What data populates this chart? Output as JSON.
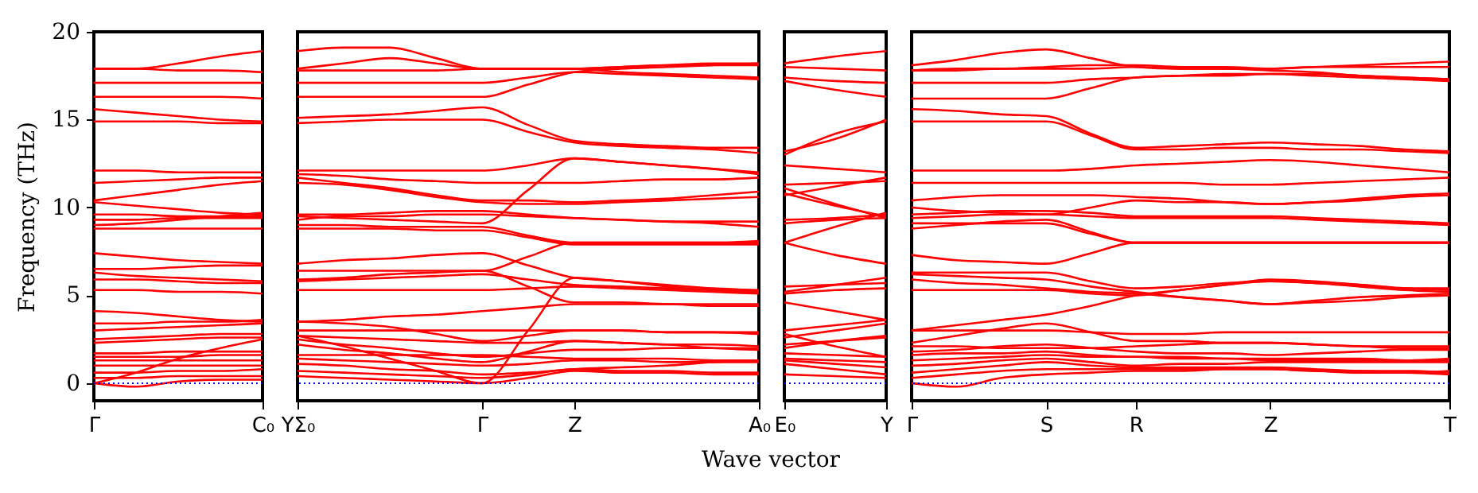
{
  "chart_data": [
    {
      "type": "line",
      "ylabel": "Frequency (THz)",
      "categories": [
        "Γ",
        null,
        null,
        null,
        "C₀"
      ],
      "ylim": [
        -1,
        20
      ],
      "yticks": [
        0,
        5,
        10,
        15,
        20
      ],
      "line_style": "solid",
      "ref_lines": [
        {
          "axis": "y",
          "value": 0,
          "label": null,
          "color": "#0000ff",
          "line_style": "dotted"
        }
      ],
      "series": [
        {
          "color": "#ff0000",
          "values": [
            17.9,
            17.9,
            18.2,
            18.6,
            18.9
          ]
        },
        {
          "color": "#ff0000",
          "values": [
            17.9,
            17.9,
            17.8,
            17.8,
            17.7
          ]
        },
        {
          "color": "#ff0000",
          "values": [
            17.1,
            17.1,
            17.1,
            17.1,
            17.1
          ]
        },
        {
          "color": "#ff0000",
          "values": [
            16.3,
            16.3,
            16.3,
            16.3,
            16.2
          ]
        },
        {
          "color": "#ff0000",
          "values": [
            15.6,
            15.4,
            15.2,
            15.0,
            14.9
          ]
        },
        {
          "color": "#ff0000",
          "values": [
            14.9,
            14.9,
            14.9,
            14.8,
            14.8
          ]
        },
        {
          "color": "#ff0000",
          "values": [
            12.1,
            12.1,
            12.0,
            12.0,
            12.0
          ]
        },
        {
          "color": "#ff0000",
          "values": [
            11.4,
            11.5,
            11.6,
            11.7,
            11.7
          ]
        },
        {
          "color": "#ff0000",
          "values": [
            10.4,
            10.7,
            11.0,
            11.3,
            11.5
          ]
        },
        {
          "color": "#ff0000",
          "values": [
            10.3,
            10.1,
            9.9,
            9.7,
            9.6
          ]
        },
        {
          "color": "#ff0000",
          "values": [
            9.6,
            9.6,
            9.5,
            9.5,
            9.5
          ]
        },
        {
          "color": "#ff0000",
          "values": [
            9.3,
            9.3,
            9.4,
            9.4,
            9.4
          ]
        },
        {
          "color": "#ff0000",
          "values": [
            9.0,
            9.1,
            9.3,
            9.5,
            9.7
          ]
        },
        {
          "color": "#ff0000",
          "values": [
            8.8,
            8.8,
            8.8,
            8.8,
            8.8
          ]
        },
        {
          "color": "#ff0000",
          "values": [
            7.4,
            7.2,
            7.0,
            6.9,
            6.8
          ]
        },
        {
          "color": "#ff0000",
          "values": [
            6.5,
            6.5,
            6.6,
            6.7,
            6.7
          ]
        },
        {
          "color": "#ff0000",
          "values": [
            6.3,
            6.1,
            6.0,
            5.9,
            5.8
          ]
        },
        {
          "color": "#ff0000",
          "values": [
            5.9,
            5.9,
            5.8,
            5.7,
            5.7
          ]
        },
        {
          "color": "#ff0000",
          "values": [
            5.3,
            5.3,
            5.2,
            5.2,
            5.1
          ]
        },
        {
          "color": "#ff0000",
          "values": [
            4.1,
            4.0,
            3.8,
            3.6,
            3.5
          ]
        },
        {
          "color": "#ff0000",
          "values": [
            3.4,
            3.4,
            3.5,
            3.5,
            3.6
          ]
        },
        {
          "color": "#ff0000",
          "values": [
            3.0,
            3.1,
            3.2,
            3.3,
            3.4
          ]
        },
        {
          "color": "#ff0000",
          "values": [
            2.5,
            2.6,
            2.7,
            2.8,
            2.8
          ]
        },
        {
          "color": "#ff0000",
          "values": [
            2.3,
            2.4,
            2.5,
            2.6,
            2.6
          ]
        },
        {
          "color": "#ff0000",
          "values": [
            1.7,
            1.7,
            1.8,
            1.8,
            1.8
          ]
        },
        {
          "color": "#ff0000",
          "values": [
            1.5,
            1.5,
            1.5,
            1.6,
            1.6
          ]
        },
        {
          "color": "#ff0000",
          "values": [
            1.3,
            1.3,
            1.3,
            1.3,
            1.3
          ]
        },
        {
          "color": "#ff0000",
          "values": [
            1.0,
            1.0,
            1.0,
            1.0,
            1.0
          ]
        },
        {
          "color": "#ff0000",
          "values": [
            0.6,
            0.6,
            0.7,
            0.7,
            0.8
          ]
        },
        {
          "color": "#ff0000",
          "values": [
            0.3,
            0.3,
            0.4,
            0.4,
            0.4
          ]
        },
        {
          "color": "#ff0000",
          "values": [
            0.0,
            -0.2,
            0.1,
            0.2,
            0.2
          ]
        },
        {
          "color": "#ff0000",
          "values": [
            0.0,
            0.6,
            1.4,
            2.0,
            2.5
          ]
        }
      ]
    },
    {
      "type": "line",
      "categories": [
        "YΣ₀",
        null,
        null,
        null,
        "Γ",
        null,
        "Z",
        null,
        null,
        null,
        "A₀"
      ],
      "ylim": [
        -1,
        20
      ],
      "yticks": [
        0,
        5,
        10,
        15,
        20
      ],
      "tick_labels": "x",
      "line_style": "solid",
      "ref_lines": [
        {
          "axis": "y",
          "value": 0,
          "label": null,
          "color": "#0000ff",
          "line_style": "dotted"
        }
      ],
      "series": [
        {
          "color": "#ff0000",
          "values": [
            18.9,
            19.1,
            19.1,
            18.5,
            17.9,
            17.9,
            17.9,
            18.0,
            18.1,
            18.2,
            18.2
          ]
        },
        {
          "color": "#ff0000",
          "values": [
            17.9,
            18.2,
            18.5,
            18.2,
            17.9,
            17.9,
            17.9,
            18.0,
            18.1,
            18.1,
            18.1
          ]
        },
        {
          "color": "#ff0000",
          "values": [
            17.8,
            17.8,
            17.8,
            17.8,
            17.9,
            17.9,
            17.9,
            17.7,
            17.6,
            17.5,
            17.4
          ]
        },
        {
          "color": "#ff0000",
          "values": [
            17.1,
            17.1,
            17.1,
            17.1,
            17.1,
            17.4,
            17.7,
            17.6,
            17.5,
            17.4,
            17.3
          ]
        },
        {
          "color": "#ff0000",
          "values": [
            16.3,
            16.3,
            16.3,
            16.3,
            16.3,
            17.0,
            17.7,
            17.9,
            18.0,
            18.1,
            18.2
          ]
        },
        {
          "color": "#ff0000",
          "values": [
            15.1,
            15.2,
            15.3,
            15.5,
            15.7,
            14.7,
            13.8,
            13.6,
            13.5,
            13.4,
            13.4
          ]
        },
        {
          "color": "#ff0000",
          "values": [
            14.8,
            14.9,
            15.0,
            15.0,
            15.0,
            14.3,
            13.7,
            13.5,
            13.4,
            13.3,
            13.1
          ]
        },
        {
          "color": "#ff0000",
          "values": [
            12.1,
            12.1,
            12.1,
            12.1,
            12.1,
            12.4,
            12.8,
            12.6,
            12.4,
            12.2,
            12.0
          ]
        },
        {
          "color": "#ff0000",
          "values": [
            11.9,
            11.8,
            11.6,
            11.5,
            11.4,
            11.4,
            11.4,
            11.5,
            11.6,
            11.6,
            11.7
          ]
        },
        {
          "color": "#ff0000",
          "values": [
            11.7,
            11.4,
            11.1,
            10.7,
            10.4,
            10.4,
            10.3,
            10.4,
            10.5,
            10.7,
            10.9
          ]
        },
        {
          "color": "#ff0000",
          "values": [
            11.4,
            11.3,
            11.0,
            10.6,
            10.3,
            10.2,
            10.2,
            10.3,
            10.4,
            10.5,
            10.6
          ]
        },
        {
          "color": "#ff0000",
          "values": [
            9.5,
            9.4,
            9.3,
            9.2,
            9.1,
            11.0,
            12.8,
            12.6,
            12.4,
            12.2,
            11.9
          ]
        },
        {
          "color": "#ff0000",
          "values": [
            9.6,
            9.6,
            9.7,
            9.8,
            9.8,
            9.6,
            9.4,
            9.3,
            9.2,
            9.2,
            9.2
          ]
        },
        {
          "color": "#ff0000",
          "values": [
            9.3,
            9.5,
            9.5,
            9.6,
            9.6,
            9.5,
            9.4,
            9.3,
            9.2,
            9.1,
            8.9
          ]
        },
        {
          "color": "#ff0000",
          "values": [
            9.0,
            9.0,
            8.9,
            8.9,
            8.9,
            8.4,
            8.0,
            8.0,
            8.0,
            8.0,
            8.0
          ]
        },
        {
          "color": "#ff0000",
          "values": [
            8.8,
            8.8,
            8.8,
            8.7,
            8.7,
            8.3,
            7.9,
            7.9,
            7.9,
            7.9,
            7.9
          ]
        },
        {
          "color": "#ff0000",
          "values": [
            6.8,
            7.0,
            7.1,
            7.3,
            7.4,
            6.7,
            6.0,
            5.8,
            5.5,
            5.3,
            5.2
          ]
        },
        {
          "color": "#ff0000",
          "values": [
            6.4,
            6.4,
            6.4,
            6.4,
            6.4,
            7.2,
            8.0,
            8.0,
            8.0,
            8.0,
            8.1
          ]
        },
        {
          "color": "#ff0000",
          "values": [
            5.9,
            6.0,
            6.2,
            6.3,
            6.4,
            5.5,
            4.6,
            4.6,
            4.5,
            4.5,
            4.5
          ]
        },
        {
          "color": "#ff0000",
          "values": [
            5.8,
            5.9,
            6.0,
            6.1,
            6.2,
            5.9,
            5.6,
            5.5,
            5.4,
            5.3,
            5.2
          ]
        },
        {
          "color": "#ff0000",
          "values": [
            5.3,
            5.3,
            5.3,
            5.3,
            5.3,
            5.4,
            5.5,
            5.4,
            5.3,
            5.2,
            5.1
          ]
        },
        {
          "color": "#ff0000",
          "values": [
            3.5,
            3.6,
            3.8,
            3.9,
            4.1,
            4.3,
            4.5,
            4.5,
            4.5,
            4.4,
            4.4
          ]
        },
        {
          "color": "#ff0000",
          "values": [
            2.7,
            2.1,
            1.4,
            0.7,
            0.0,
            3.0,
            6.0,
            5.8,
            5.6,
            5.4,
            5.3
          ]
        },
        {
          "color": "#ff0000",
          "values": [
            3.5,
            3.4,
            3.2,
            2.8,
            2.4,
            2.7,
            3.0,
            3.0,
            2.9,
            2.9,
            2.8
          ]
        },
        {
          "color": "#ff0000",
          "values": [
            3.0,
            3.0,
            3.0,
            3.0,
            3.0,
            3.0,
            3.0,
            3.0,
            2.9,
            2.9,
            2.9
          ]
        },
        {
          "color": "#ff0000",
          "values": [
            2.7,
            2.6,
            2.5,
            2.4,
            2.3,
            2.3,
            2.4,
            2.3,
            2.2,
            2.2,
            2.1
          ]
        },
        {
          "color": "#ff0000",
          "values": [
            2.5,
            2.2,
            2.0,
            1.7,
            1.5,
            1.7,
            1.9,
            1.9,
            2.0,
            2.0,
            2.0
          ]
        },
        {
          "color": "#ff0000",
          "values": [
            2.2,
            1.9,
            1.7,
            1.4,
            1.2,
            1.8,
            2.4,
            2.3,
            2.2,
            2.0,
            1.9
          ]
        },
        {
          "color": "#ff0000",
          "values": [
            1.6,
            1.6,
            1.6,
            1.6,
            1.6,
            1.5,
            1.4,
            1.4,
            1.4,
            1.3,
            1.3
          ]
        },
        {
          "color": "#ff0000",
          "values": [
            1.4,
            1.3,
            1.2,
            1.1,
            1.0,
            1.1,
            1.3,
            1.3,
            1.2,
            1.2,
            1.2
          ]
        },
        {
          "color": "#ff0000",
          "values": [
            1.1,
            1.0,
            0.8,
            0.7,
            0.5,
            0.6,
            0.8,
            0.9,
            1.0,
            1.2,
            1.3
          ]
        },
        {
          "color": "#ff0000",
          "values": [
            0.7,
            0.6,
            0.5,
            0.4,
            0.3,
            0.5,
            0.8,
            0.7,
            0.7,
            0.6,
            0.6
          ]
        },
        {
          "color": "#ff0000",
          "values": [
            0.4,
            0.3,
            0.2,
            0.1,
            0.0,
            0.3,
            0.7,
            0.6,
            0.6,
            0.5,
            0.5
          ]
        }
      ]
    },
    {
      "type": "line",
      "xlabel": "Wave vector",
      "categories": [
        "E₀",
        null,
        "Y"
      ],
      "ylim": [
        -1,
        20
      ],
      "yticks": [
        0,
        5,
        10,
        15,
        20
      ],
      "tick_labels": "x",
      "line_style": "solid",
      "ref_lines": [
        {
          "axis": "y",
          "value": 0,
          "label": null,
          "color": "#0000ff",
          "line_style": "dotted"
        }
      ],
      "series": [
        {
          "color": "#ff0000",
          "values": [
            18.2,
            18.6,
            18.9
          ]
        },
        {
          "color": "#ff0000",
          "values": [
            18.0,
            17.9,
            17.8
          ]
        },
        {
          "color": "#ff0000",
          "values": [
            17.4,
            17.2,
            17.1
          ]
        },
        {
          "color": "#ff0000",
          "values": [
            17.2,
            16.7,
            16.3
          ]
        },
        {
          "color": "#ff0000",
          "values": [
            13.2,
            13.9,
            15.0
          ]
        },
        {
          "color": "#ff0000",
          "values": [
            13.0,
            14.2,
            14.9
          ]
        },
        {
          "color": "#ff0000",
          "values": [
            12.4,
            12.2,
            12.0
          ]
        },
        {
          "color": "#ff0000",
          "values": [
            10.7,
            11.2,
            11.7
          ]
        },
        {
          "color": "#ff0000",
          "values": [
            11.3,
            11.4,
            11.5
          ]
        },
        {
          "color": "#ff0000",
          "values": [
            10.8,
            10.1,
            9.5
          ]
        },
        {
          "color": "#ff0000",
          "values": [
            11.1,
            10.2,
            9.4
          ]
        },
        {
          "color": "#ff0000",
          "values": [
            9.3,
            9.4,
            9.6
          ]
        },
        {
          "color": "#ff0000",
          "values": [
            9.1,
            9.3,
            9.4
          ]
        },
        {
          "color": "#ff0000",
          "values": [
            8.0,
            7.3,
            6.8
          ]
        },
        {
          "color": "#ff0000",
          "values": [
            8.0,
            8.9,
            9.7
          ]
        },
        {
          "color": "#ff0000",
          "values": [
            5.2,
            5.6,
            6.0
          ]
        },
        {
          "color": "#ff0000",
          "values": [
            5.5,
            5.6,
            5.7
          ]
        },
        {
          "color": "#ff0000",
          "values": [
            5.1,
            5.3,
            5.4
          ]
        },
        {
          "color": "#ff0000",
          "values": [
            4.6,
            4.1,
            3.6
          ]
        },
        {
          "color": "#ff0000",
          "values": [
            3.0,
            3.3,
            3.6
          ]
        },
        {
          "color": "#ff0000",
          "values": [
            2.8,
            2.1,
            1.5
          ]
        },
        {
          "color": "#ff0000",
          "values": [
            2.6,
            3.0,
            3.4
          ]
        },
        {
          "color": "#ff0000",
          "values": [
            2.2,
            2.4,
            2.6
          ]
        },
        {
          "color": "#ff0000",
          "values": [
            2.0,
            2.4,
            2.7
          ]
        },
        {
          "color": "#ff0000",
          "values": [
            1.7,
            1.6,
            1.5
          ]
        },
        {
          "color": "#ff0000",
          "values": [
            1.4,
            1.3,
            1.2
          ]
        },
        {
          "color": "#ff0000",
          "values": [
            1.3,
            1.1,
            0.9
          ]
        },
        {
          "color": "#ff0000",
          "values": [
            1.1,
            0.8,
            0.5
          ]
        },
        {
          "color": "#ff0000",
          "values": [
            0.5,
            0.4,
            0.3
          ]
        }
      ]
    },
    {
      "type": "line",
      "categories": [
        "Γ",
        null,
        null,
        "S",
        null,
        "R",
        null,
        null,
        "Z",
        null,
        null,
        null,
        "T"
      ],
      "ylim": [
        -1,
        20
      ],
      "yticks": [
        0,
        5,
        10,
        15,
        20
      ],
      "tick_labels": "x",
      "line_style": "solid",
      "ref_lines": [
        {
          "axis": "y",
          "value": 0,
          "label": null,
          "color": "#0000ff",
          "line_style": "dotted"
        }
      ],
      "series": [
        {
          "color": "#ff0000",
          "values": [
            18.1,
            18.4,
            18.8,
            19.0,
            18.5,
            18.0,
            17.9,
            17.9,
            17.9,
            18.0,
            18.1,
            18.2,
            18.3
          ]
        },
        {
          "color": "#ff0000",
          "values": [
            17.8,
            17.9,
            17.9,
            18.0,
            18.1,
            18.1,
            18.0,
            18.0,
            17.9,
            18.0,
            18.0,
            18.0,
            18.0
          ]
        },
        {
          "color": "#ff0000",
          "values": [
            17.8,
            17.8,
            17.9,
            17.9,
            17.9,
            18.0,
            17.9,
            17.9,
            17.8,
            17.7,
            17.5,
            17.4,
            17.3
          ]
        },
        {
          "color": "#ff0000",
          "values": [
            17.1,
            17.1,
            17.1,
            17.1,
            17.3,
            17.4,
            17.5,
            17.5,
            17.6,
            17.5,
            17.4,
            17.3,
            17.2
          ]
        },
        {
          "color": "#ff0000",
          "values": [
            16.2,
            16.2,
            16.2,
            16.2,
            16.8,
            17.4,
            17.5,
            17.6,
            17.6,
            17.6,
            17.5,
            17.4,
            17.3
          ]
        },
        {
          "color": "#ff0000",
          "values": [
            15.6,
            15.5,
            15.3,
            15.2,
            14.2,
            13.4,
            13.5,
            13.6,
            13.7,
            13.6,
            13.5,
            13.3,
            13.2
          ]
        },
        {
          "color": "#ff0000",
          "values": [
            14.9,
            14.9,
            14.9,
            14.9,
            14.1,
            13.3,
            13.3,
            13.4,
            13.4,
            13.3,
            13.3,
            13.2,
            13.1
          ]
        },
        {
          "color": "#ff0000",
          "values": [
            12.1,
            12.1,
            12.1,
            12.1,
            12.2,
            12.4,
            12.5,
            12.6,
            12.7,
            12.6,
            12.4,
            12.2,
            12.0
          ]
        },
        {
          "color": "#ff0000",
          "values": [
            11.4,
            11.4,
            11.4,
            11.4,
            11.4,
            11.4,
            11.4,
            11.3,
            11.3,
            11.4,
            11.5,
            11.6,
            11.7
          ]
        },
        {
          "color": "#ff0000",
          "values": [
            10.4,
            10.6,
            10.7,
            10.7,
            10.7,
            10.6,
            10.5,
            10.3,
            10.2,
            10.3,
            10.5,
            10.7,
            10.8
          ]
        },
        {
          "color": "#ff0000",
          "values": [
            10.0,
            9.8,
            9.7,
            9.6,
            10.0,
            10.4,
            10.3,
            10.3,
            10.2,
            10.3,
            10.4,
            10.6,
            10.7
          ]
        },
        {
          "color": "#ff0000",
          "values": [
            9.6,
            9.7,
            9.8,
            9.8,
            9.7,
            9.5,
            9.5,
            9.5,
            9.5,
            9.4,
            9.3,
            9.2,
            9.1
          ]
        },
        {
          "color": "#ff0000",
          "values": [
            9.4,
            9.5,
            9.6,
            9.6,
            9.5,
            9.4,
            9.4,
            9.4,
            9.4,
            9.3,
            9.2,
            9.1,
            9.0
          ]
        },
        {
          "color": "#ff0000",
          "values": [
            9.1,
            9.1,
            9.1,
            9.1,
            8.5,
            8.0,
            8.0,
            8.0,
            8.0,
            8.0,
            8.0,
            8.0,
            8.0
          ]
        },
        {
          "color": "#ff0000",
          "values": [
            8.8,
            9.0,
            9.2,
            9.3,
            8.6,
            8.0,
            8.0,
            8.0,
            8.0,
            8.0,
            8.0,
            8.0,
            8.0
          ]
        },
        {
          "color": "#ff0000",
          "values": [
            7.3,
            7.0,
            6.9,
            6.8,
            7.4,
            8.0,
            8.0,
            8.0,
            8.0,
            8.0,
            8.0,
            8.0,
            8.0
          ]
        },
        {
          "color": "#ff0000",
          "values": [
            6.3,
            6.3,
            6.3,
            6.3,
            5.8,
            5.4,
            5.5,
            5.7,
            5.8,
            5.7,
            5.5,
            5.3,
            5.2
          ]
        },
        {
          "color": "#ff0000",
          "values": [
            6.2,
            6.1,
            6.0,
            5.9,
            5.5,
            5.2,
            4.9,
            4.7,
            4.5,
            4.6,
            4.7,
            4.9,
            5.0
          ]
        },
        {
          "color": "#ff0000",
          "values": [
            5.9,
            5.7,
            5.6,
            5.4,
            5.2,
            5.1,
            4.9,
            4.7,
            4.5,
            4.7,
            4.9,
            5.0,
            5.1
          ]
        },
        {
          "color": "#ff0000",
          "values": [
            5.3,
            5.3,
            5.3,
            5.3,
            5.1,
            5.0,
            5.3,
            5.6,
            5.8,
            5.7,
            5.6,
            5.4,
            5.3
          ]
        },
        {
          "color": "#ff0000",
          "values": [
            3.0,
            3.3,
            3.6,
            3.9,
            4.4,
            5.0,
            5.3,
            5.6,
            5.9,
            5.8,
            5.6,
            5.4,
            5.4
          ]
        },
        {
          "color": "#ff0000",
          "values": [
            3.0,
            3.0,
            3.0,
            3.0,
            2.9,
            2.8,
            2.8,
            2.9,
            2.9,
            2.9,
            2.9,
            2.9,
            2.9
          ]
        },
        {
          "color": "#ff0000",
          "values": [
            2.3,
            2.7,
            3.1,
            3.4,
            2.9,
            2.4,
            2.4,
            2.3,
            2.3,
            2.2,
            2.1,
            2.0,
            2.0
          ]
        },
        {
          "color": "#ff0000",
          "values": [
            2.1,
            2.1,
            2.0,
            2.0,
            2.0,
            2.1,
            2.2,
            2.3,
            2.3,
            2.2,
            2.1,
            2.1,
            2.1
          ]
        },
        {
          "color": "#ff0000",
          "values": [
            1.8,
            1.9,
            2.1,
            2.2,
            2.0,
            1.8,
            1.7,
            1.7,
            1.6,
            1.7,
            1.8,
            1.9,
            1.9
          ]
        },
        {
          "color": "#ff0000",
          "values": [
            1.6,
            1.7,
            1.7,
            1.8,
            1.6,
            1.5,
            1.5,
            1.4,
            1.4,
            1.4,
            1.4,
            1.3,
            1.3
          ]
        },
        {
          "color": "#ff0000",
          "values": [
            1.3,
            1.4,
            1.5,
            1.6,
            1.5,
            1.5,
            1.4,
            1.4,
            1.3,
            1.3,
            1.3,
            1.3,
            1.4
          ]
        },
        {
          "color": "#ff0000",
          "values": [
            1.0,
            1.1,
            1.3,
            1.4,
            1.2,
            1.0,
            1.1,
            1.1,
            1.2,
            1.2,
            1.2,
            1.2,
            1.2
          ]
        },
        {
          "color": "#ff0000",
          "values": [
            0.6,
            0.8,
            1.0,
            1.2,
            1.0,
            0.9,
            0.9,
            0.9,
            0.9,
            0.8,
            0.7,
            0.7,
            0.6
          ]
        },
        {
          "color": "#ff0000",
          "values": [
            0.3,
            0.5,
            0.7,
            0.8,
            0.8,
            0.8,
            0.8,
            0.8,
            0.8,
            0.7,
            0.7,
            0.6,
            0.7
          ]
        },
        {
          "color": "#ff0000",
          "values": [
            0.0,
            -0.2,
            0.3,
            0.5,
            0.6,
            0.7,
            0.7,
            0.8,
            0.8,
            0.7,
            0.6,
            0.6,
            0.5
          ]
        }
      ]
    }
  ]
}
